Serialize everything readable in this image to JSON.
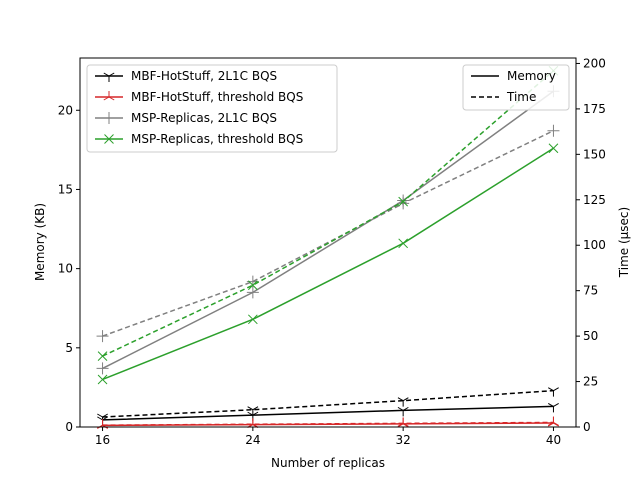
{
  "chart_data": {
    "type": "line",
    "x": [
      16,
      24,
      32,
      40
    ],
    "xticks": [
      "16",
      "24",
      "32",
      "40"
    ],
    "xlabel": "Number of replicas",
    "ylabel_left": "Memory (KB)",
    "ylabel_right": "Time (µsec)",
    "ylim_left": [
      0,
      23.3
    ],
    "ylim_right": [
      0,
      203
    ],
    "yticks_left": [
      "0",
      "5",
      "10",
      "15",
      "20"
    ],
    "yticks_right": [
      "0",
      "25",
      "50",
      "75",
      "100",
      "125",
      "150",
      "175",
      "200"
    ],
    "legend_position": "upper-left",
    "style_legend_position": "upper-right",
    "series": [
      {
        "name": "MBF-HotStuff, 2L1C BQS",
        "color": "#000000",
        "marker": "tri-down",
        "memory": [
          0.45,
          0.75,
          1.05,
          1.3
        ],
        "time": [
          5.5,
          9.5,
          14.5,
          20
        ]
      },
      {
        "name": "MBF-HotStuff, threshold BQS",
        "color": "#d62728",
        "marker": "tri-up",
        "memory": [
          0.1,
          0.15,
          0.2,
          0.25
        ],
        "time": [
          1,
          1.5,
          2,
          2.5
        ]
      },
      {
        "name": "MSP-Replicas, 2L1C BQS",
        "color": "#808080",
        "marker": "plus",
        "memory": [
          3.7,
          8.5,
          14.3,
          21.2
        ],
        "time": [
          50,
          80,
          123,
          163
        ]
      },
      {
        "name": "MSP-Replicas, threshold BQS",
        "color": "#2ca02c",
        "marker": "x",
        "memory": [
          3.0,
          6.8,
          11.6,
          17.6
        ],
        "time": [
          39,
          78,
          124,
          196
        ]
      }
    ],
    "style_legend": [
      {
        "label": "Memory",
        "dash": "solid"
      },
      {
        "label": "Time",
        "dash": "dashed"
      }
    ]
  }
}
